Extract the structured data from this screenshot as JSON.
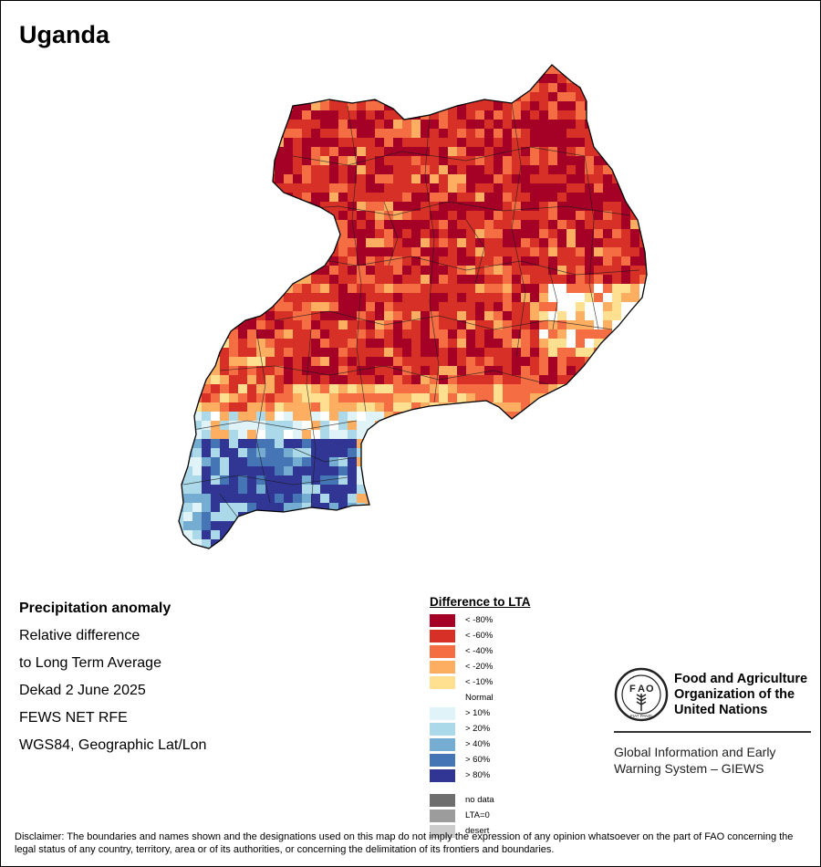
{
  "map": {
    "title": "Uganda"
  },
  "info": {
    "lines": [
      "Precipitation anomaly",
      "Relative difference",
      "to Long Term Average",
      "Dekad 2 June 2025",
      "FEWS NET RFE",
      "WGS84, Geographic Lat/Lon"
    ]
  },
  "legend": {
    "title": "Difference to LTA",
    "classes": [
      {
        "label": "< -80%",
        "color": "#a50026"
      },
      {
        "label": "< -60%",
        "color": "#d73027"
      },
      {
        "label": "< -40%",
        "color": "#f46d43"
      },
      {
        "label": "< -20%",
        "color": "#fdae61"
      },
      {
        "label": "< -10%",
        "color": "#fee090"
      },
      {
        "label": "Normal",
        "color": "#ffffff"
      },
      {
        "label": "> 10%",
        "color": "#e0f3f8"
      },
      {
        "label": "> 20%",
        "color": "#abd9e9"
      },
      {
        "label": "> 40%",
        "color": "#74add1"
      },
      {
        "label": "> 60%",
        "color": "#4575b4"
      },
      {
        "label": "> 80%",
        "color": "#313695"
      }
    ],
    "extra": [
      {
        "label": "no data",
        "color": "#6e6e6e"
      },
      {
        "label": "LTA=0",
        "color": "#9c9c9c"
      },
      {
        "label": "desert",
        "color": "#cccccc"
      }
    ]
  },
  "fao": {
    "logo_text": "FIAT PANIS",
    "name_lines": [
      "Food and Agriculture",
      "Organization of the",
      "United Nations"
    ],
    "giews_lines": [
      "Global Information and Early",
      "Warning System – GIEWS"
    ]
  },
  "disclaimer": "Disclaimer: The boundaries and names shown and the designations used on this map do not imply the expression of any opinion whatsoever on the part of FAO concerning the legal status of any country, territory, area or of its authorities, or concerning the delimitation of its frontiers and boundaries."
}
